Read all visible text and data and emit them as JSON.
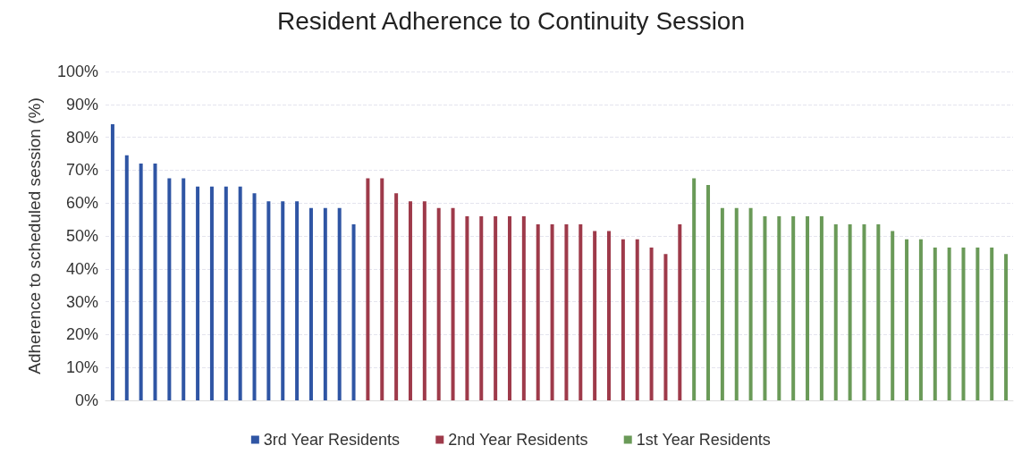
{
  "chart_data": {
    "type": "bar",
    "title": "Resident Adherence to Continuity Session",
    "ylabel": "Adherence to scheduled session (%)",
    "categories": [
      null,
      null,
      null,
      null,
      null,
      null,
      null,
      null,
      null,
      null,
      null,
      null,
      null,
      null,
      null,
      null,
      null,
      null,
      null,
      null,
      null,
      null,
      null,
      null,
      null,
      null,
      null,
      null,
      null,
      null,
      null,
      null,
      null,
      null,
      null,
      null,
      null,
      null,
      null,
      null,
      null,
      null,
      null,
      null,
      null,
      null,
      null,
      null,
      null,
      null,
      null,
      null,
      null,
      null,
      null,
      null,
      null,
      null,
      null,
      null,
      null,
      null,
      null,
      null
    ],
    "series": [
      {
        "name": "3rd Year Residents",
        "color": "#2f55a4",
        "values": [
          84,
          74.5,
          72,
          72,
          67.5,
          67.5,
          65,
          65,
          65,
          65,
          63,
          60.5,
          60.5,
          60.5,
          58.5,
          58.5,
          58.5,
          53.5,
          null,
          null,
          null,
          null,
          null,
          null,
          null,
          null,
          null,
          null,
          null,
          null,
          null,
          null,
          null,
          null,
          null,
          null,
          null,
          null,
          null,
          null,
          null,
          null,
          null,
          null,
          null,
          null,
          null,
          null,
          null,
          null,
          null,
          null,
          null,
          null,
          null,
          null,
          null,
          null,
          null,
          null,
          null,
          null,
          null,
          null
        ]
      },
      {
        "name": "2nd Year Residents",
        "color": "#9e3a4a",
        "values": [
          null,
          null,
          null,
          null,
          null,
          null,
          null,
          null,
          null,
          null,
          null,
          null,
          null,
          null,
          null,
          null,
          null,
          null,
          67.5,
          67.5,
          63,
          60.5,
          60.5,
          58.5,
          58.5,
          56,
          56,
          56,
          56,
          56,
          53.5,
          53.5,
          53.5,
          53.5,
          51.5,
          51.5,
          49,
          49,
          46.5,
          44.5,
          53.5,
          null,
          null,
          null,
          null,
          null,
          null,
          null,
          null,
          null,
          null,
          null,
          null,
          null,
          null,
          null,
          null,
          null,
          null,
          null,
          null,
          null,
          null,
          null
        ]
      },
      {
        "name": "1st Year Residents",
        "color": "#6a9a58",
        "values": [
          null,
          null,
          null,
          null,
          null,
          null,
          null,
          null,
          null,
          null,
          null,
          null,
          null,
          null,
          null,
          null,
          null,
          null,
          null,
          null,
          null,
          null,
          null,
          null,
          null,
          null,
          null,
          null,
          null,
          null,
          null,
          null,
          null,
          null,
          null,
          null,
          null,
          null,
          null,
          null,
          null,
          67.5,
          65.5,
          58.5,
          58.5,
          58.5,
          56,
          56,
          56,
          56,
          56,
          53.5,
          53.5,
          53.5,
          53.5,
          51.5,
          49,
          49,
          46.5,
          46.5,
          46.5,
          46.5,
          46.5,
          44.5
        ]
      }
    ],
    "ylim": [
      0,
      100
    ],
    "yticks": [
      {
        "value": 0,
        "label": "0%"
      },
      {
        "value": 10,
        "label": "10%"
      },
      {
        "value": 20,
        "label": "20%"
      },
      {
        "value": 30,
        "label": "30%"
      },
      {
        "value": 40,
        "label": "40%"
      },
      {
        "value": 50,
        "label": "50%"
      },
      {
        "value": 60,
        "label": "60%"
      },
      {
        "value": 70,
        "label": "70%"
      },
      {
        "value": 80,
        "label": "80%"
      },
      {
        "value": 90,
        "label": "90%"
      },
      {
        "value": 100,
        "label": "100%"
      }
    ],
    "grid": "y",
    "legend": "bottom"
  }
}
